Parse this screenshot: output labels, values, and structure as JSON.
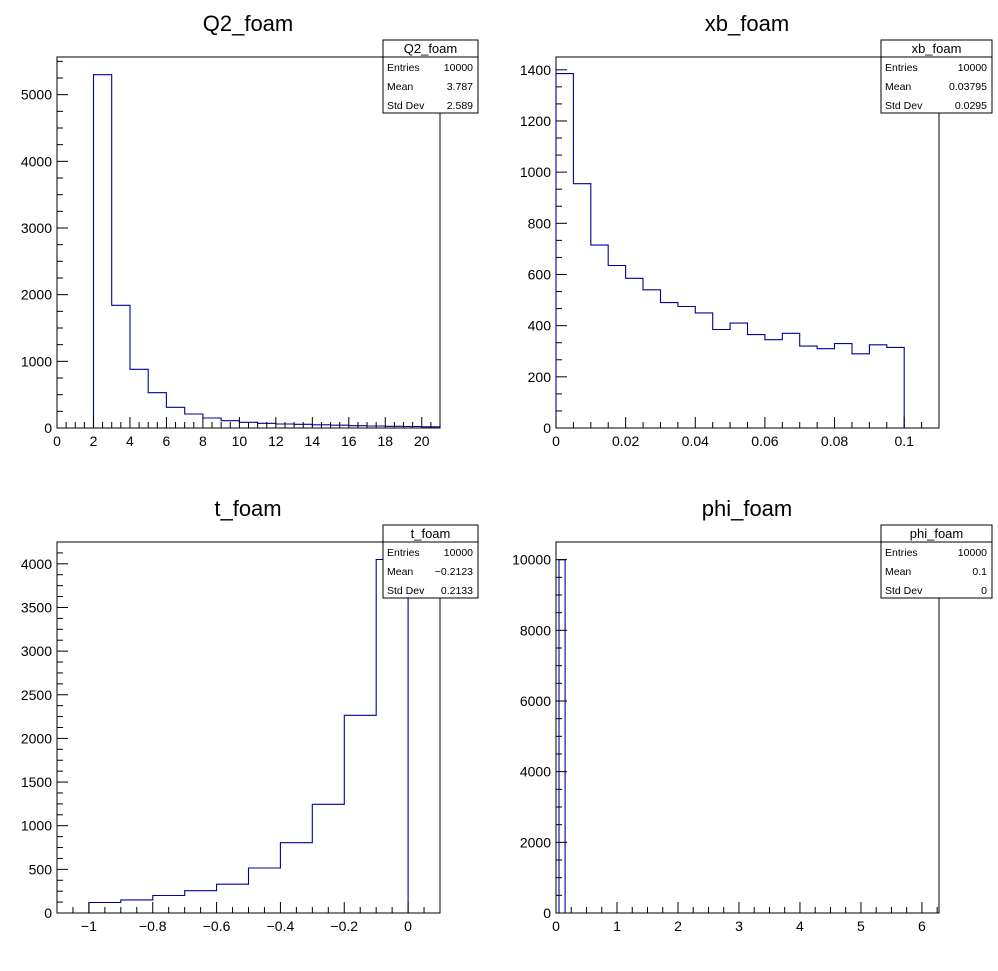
{
  "chart_data": [
    {
      "type": "bar",
      "title": "Q2_foam",
      "xlim": [
        0,
        21
      ],
      "ylim": [
        0,
        5565
      ],
      "x_ticks": [
        0,
        2,
        4,
        6,
        8,
        10,
        12,
        14,
        16,
        18,
        20
      ],
      "x_tick_labels": [
        "0",
        "2",
        "4",
        "6",
        "8",
        "10",
        "12",
        "14",
        "16",
        "18",
        "20"
      ],
      "y_ticks": [
        0,
        1000,
        2000,
        3000,
        4000,
        5000
      ],
      "y_tick_labels": [
        "0",
        "1000",
        "2000",
        "3000",
        "4000",
        "5000"
      ],
      "bin_edges": [
        2,
        3,
        4,
        5,
        6,
        7,
        8,
        9,
        10,
        11,
        12,
        13,
        14,
        15,
        16,
        17,
        18,
        19,
        20,
        21
      ],
      "values": [
        5300,
        1840,
        880,
        530,
        310,
        210,
        150,
        110,
        85,
        70,
        60,
        55,
        48,
        42,
        35,
        30,
        25,
        22,
        18
      ],
      "stats": {
        "name": "Q2_foam",
        "rows": [
          {
            "label": "Entries",
            "value": "10000"
          },
          {
            "label": "Mean",
            "value": "3.787"
          },
          {
            "label": "Std Dev",
            "value": "2.589"
          }
        ]
      }
    },
    {
      "type": "bar",
      "title": "xb_foam",
      "xlim": [
        0,
        0.11
      ],
      "ylim": [
        0,
        1450
      ],
      "x_ticks": [
        0,
        0.02,
        0.04,
        0.06,
        0.08,
        0.1
      ],
      "x_tick_labels": [
        "0",
        "0.02",
        "0.04",
        "0.06",
        "0.08",
        "0.1"
      ],
      "y_ticks": [
        0,
        200,
        400,
        600,
        800,
        1000,
        1200,
        1400
      ],
      "y_tick_labels": [
        "0",
        "200",
        "400",
        "600",
        "800",
        "1000",
        "1200",
        "1400"
      ],
      "bin_edges": [
        0,
        0.005,
        0.01,
        0.015,
        0.02,
        0.025,
        0.03,
        0.035,
        0.04,
        0.045,
        0.05,
        0.055,
        0.06,
        0.065,
        0.07,
        0.075,
        0.08,
        0.085,
        0.09,
        0.095,
        0.1
      ],
      "values": [
        1385,
        955,
        715,
        635,
        585,
        540,
        490,
        475,
        450,
        385,
        410,
        365,
        345,
        370,
        320,
        310,
        330,
        290,
        325,
        315
      ],
      "stats": {
        "name": "xb_foam",
        "rows": [
          {
            "label": "Entries",
            "value": "10000"
          },
          {
            "label": "Mean",
            "value": "0.03795"
          },
          {
            "label": "Std Dev",
            "value": "0.0295"
          }
        ]
      }
    },
    {
      "type": "bar",
      "title": "t_foam",
      "xlim": [
        -1.1,
        0.1
      ],
      "ylim": [
        0,
        4250
      ],
      "x_ticks": [
        -1,
        -0.8,
        -0.6,
        -0.4,
        -0.2,
        0
      ],
      "x_tick_labels": [
        "−1",
        "−0.8",
        "−0.6",
        "−0.4",
        "−0.2",
        "0"
      ],
      "y_ticks": [
        0,
        500,
        1000,
        1500,
        2000,
        2500,
        3000,
        3500,
        4000
      ],
      "y_tick_labels": [
        "0",
        "500",
        "1000",
        "1500",
        "2000",
        "2500",
        "3000",
        "3500",
        "4000"
      ],
      "bin_edges": [
        -1,
        -0.9,
        -0.8,
        -0.7,
        -0.6,
        -0.5,
        -0.4,
        -0.3,
        -0.2,
        -0.1,
        0
      ],
      "values": [
        120,
        150,
        200,
        255,
        330,
        515,
        805,
        1245,
        2265,
        4050
      ],
      "stats": {
        "name": "t_foam",
        "rows": [
          {
            "label": "Entries",
            "value": "10000"
          },
          {
            "label": "Mean",
            "value": "−0.2123"
          },
          {
            "label": "Std Dev",
            "value": "0.2133"
          }
        ]
      }
    },
    {
      "type": "bar",
      "title": "phi_foam",
      "xlim": [
        0,
        6.28
      ],
      "ylim": [
        0,
        10500
      ],
      "x_ticks": [
        0,
        1,
        2,
        3,
        4,
        5,
        6
      ],
      "x_tick_labels": [
        "0",
        "1",
        "2",
        "3",
        "4",
        "5",
        "6"
      ],
      "y_ticks": [
        0,
        2000,
        4000,
        6000,
        8000,
        10000
      ],
      "y_tick_labels": [
        "0",
        "2000",
        "4000",
        "6000",
        "8000",
        "10000"
      ],
      "bin_edges": [
        0.05,
        0.15
      ],
      "values": [
        10000
      ],
      "stats": {
        "name": "phi_foam",
        "rows": [
          {
            "label": "Entries",
            "value": "10000"
          },
          {
            "label": "Mean",
            "value": "0.1"
          },
          {
            "label": "Std Dev",
            "value": "0"
          }
        ]
      }
    }
  ]
}
